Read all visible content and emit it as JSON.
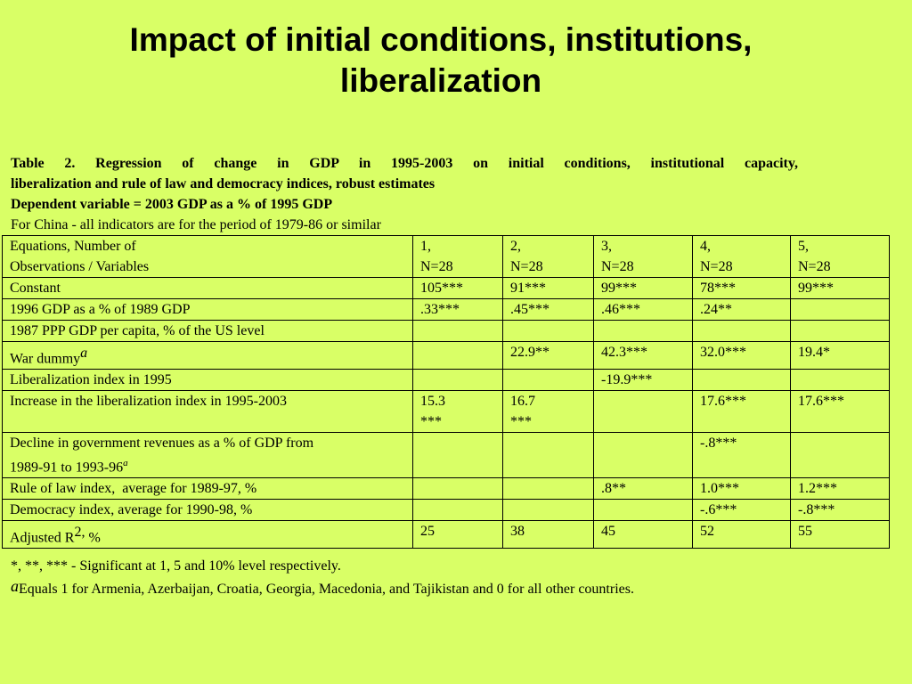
{
  "slide": {
    "title_line1": "Impact of initial conditions, institutions,",
    "title_line2": "liberalization"
  },
  "caption": {
    "line1": "Table 2. Regression of change in GDP in 1995-2003 on initial conditions, institutional capacity,",
    "line2": "liberalization and rule of law and democracy indices, robust estimates",
    "line3": "Dependent variable = 2003 GDP as a % of 1995 GDP",
    "line4": "For China - all indicators are for the period of 1979-86 or similar"
  },
  "table": {
    "header": {
      "label_line1": "Equations, Number of",
      "label_line2": "Observations / Variables",
      "eq1_line1": "1,",
      "eq1_line2": "N=28",
      "eq2_line1": "2,",
      "eq2_line2": "N=28",
      "eq3_line1": "3,",
      "eq3_line2": "N=28",
      "eq4_line1": "4,",
      "eq4_line2": "N=28",
      "eq5_line1": "5,",
      "eq5_line2": "N=28"
    },
    "rows": [
      {
        "label": "Constant",
        "v1": "105***",
        "v2": "91***",
        "v3": "99***",
        "v4": "78***",
        "v5": "99***"
      },
      {
        "label": "1996 GDP as a % of 1989 GDP",
        "v1": ".33***",
        "v2": ".45***",
        "v3": ".46***",
        "v4": ".24**",
        "v5": ""
      },
      {
        "label": "1987 PPP GDP per capita, % of the US level",
        "v1": "",
        "v2": "",
        "v3": "",
        "v4": "",
        "v5": ""
      },
      {
        "label": "War dummy",
        "sup": "a",
        "v1": "",
        "v2": "22.9**",
        "v3": "42.3***",
        "v4": "32.0***",
        "v5": "19.4*"
      },
      {
        "label": "Liberalization index in 1995",
        "v1": "",
        "v2": "",
        "v3": "-19.9***",
        "v4": "",
        "v5": ""
      },
      {
        "label": "Increase in the liberalization index in 1995-2003",
        "v1_line1": "15.3",
        "v1_line2": "***",
        "v2_line1": "16.7",
        "v2_line2": "***",
        "v3": "",
        "v4": "17.6***",
        "v5": "17.6***"
      },
      {
        "label_line1": "Decline in government revenues as a % of GDP from",
        "label_line2": "1989-91 to 1993-96",
        "sup": "a",
        "v1": "",
        "v2": "",
        "v3": "",
        "v4": "-.8***",
        "v5": ""
      },
      {
        "label": "Rule of law index,  average for 1989-97, %",
        "v1": "",
        "v2": "",
        "v3": ".8**",
        "v4": "1.0***",
        "v5": "1.2***"
      },
      {
        "label": "Democracy index, average for 1990-98, %",
        "v1": "",
        "v2": "",
        "v3": "",
        "v4": "-.6***",
        "v5": "-.8***"
      },
      {
        "label_pre": "Adjusted R",
        "sup": "2,",
        "label_post": " %",
        "v1": "25",
        "v2": "38",
        "v3": "45",
        "v4": "52",
        "v5": "55"
      }
    ]
  },
  "notes": {
    "significance": "*, **, *** - Significant at 1, 5 and 10% level respectively.",
    "footnote_marker": "a",
    "footnote_text": "Equals 1 for Armenia, Azerbaijan, Croatia, Georgia, Macedonia, and Tajikistan and 0 for all other countries."
  }
}
